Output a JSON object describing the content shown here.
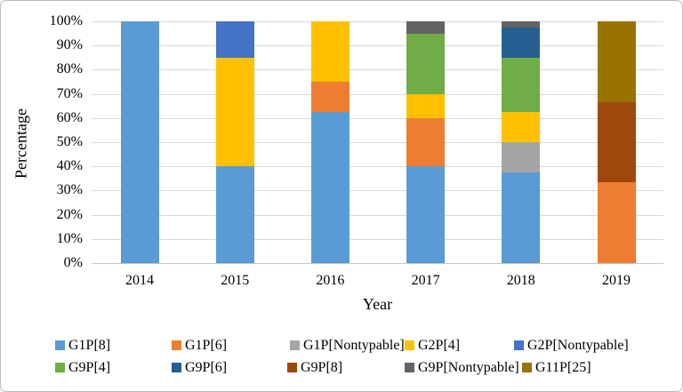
{
  "chart_data": {
    "type": "bar",
    "stacked": true,
    "xlabel": "Year",
    "ylabel": "Percentage",
    "ylim": [
      0,
      100
    ],
    "grid": true,
    "legend_position": "bottom",
    "y_ticks": [
      "0%",
      "10%",
      "20%",
      "30%",
      "40%",
      "50%",
      "60%",
      "70%",
      "80%",
      "90%",
      "100%"
    ],
    "categories": [
      "2014",
      "2015",
      "2016",
      "2017",
      "2018",
      "2019"
    ],
    "series": [
      {
        "name": "G1P[8]",
        "color": "#5B9BD5",
        "values": [
          100,
          40,
          62.5,
          40,
          37.5,
          0
        ]
      },
      {
        "name": "G1P[6]",
        "color": "#ED7D31",
        "values": [
          0,
          0,
          12.5,
          20,
          0,
          33.3
        ]
      },
      {
        "name": "G1P[Nontypable]",
        "color": "#A5A5A5",
        "values": [
          0,
          0,
          0,
          0,
          12.5,
          0
        ]
      },
      {
        "name": "G2P[4]",
        "color": "#FFC000",
        "values": [
          0,
          45,
          25,
          10,
          12.5,
          0
        ]
      },
      {
        "name": "G2P[Nontypable]",
        "color": "#4472C4",
        "values": [
          0,
          15,
          0,
          0,
          0,
          0
        ]
      },
      {
        "name": "G9P[4]",
        "color": "#70AD47",
        "values": [
          0,
          0,
          0,
          25,
          22.5,
          0
        ]
      },
      {
        "name": "G9P[6]",
        "color": "#255E91",
        "values": [
          0,
          0,
          0,
          0,
          12.5,
          0
        ]
      },
      {
        "name": "G9P[8]",
        "color": "#9E480E",
        "values": [
          0,
          0,
          0,
          0,
          0,
          33.3
        ]
      },
      {
        "name": "G9P[Nontypable]",
        "color": "#636363",
        "values": [
          0,
          0,
          0,
          5,
          2.5,
          0
        ]
      },
      {
        "name": "G11P[25]",
        "color": "#997300",
        "values": [
          0,
          0,
          0,
          0,
          0,
          33.4
        ]
      }
    ]
  }
}
